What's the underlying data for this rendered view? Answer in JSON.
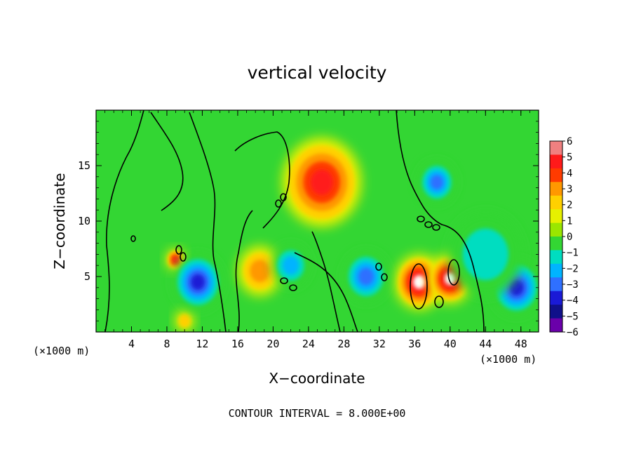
{
  "chart_data": {
    "type": "heatmap",
    "title": "vertical velocity",
    "xlabel": "X−coordinate",
    "ylabel": "Z−coordinate",
    "x_unit_left": "(×1000 m)",
    "x_unit_right": "(×1000 m)",
    "footer": "CONTOUR INTERVAL = 8.000E+00",
    "xlim": [
      0,
      50
    ],
    "ylim": [
      0,
      20
    ],
    "x_ticks": [
      4,
      8,
      12,
      16,
      20,
      24,
      28,
      32,
      36,
      40,
      44,
      48
    ],
    "y_ticks": [
      5,
      10,
      15
    ],
    "colorbar": {
      "levels": [
        6,
        5,
        4,
        3,
        2,
        1,
        0,
        -1,
        -2,
        -3,
        -4,
        -5,
        -6
      ],
      "labels": [
        "6",
        "5",
        "4",
        "3",
        "2",
        "1",
        "0",
        "−1",
        "−2",
        "−3",
        "−4",
        "−5",
        "−6"
      ],
      "colors": [
        "#f08080",
        "#ff1a1a",
        "#ff3b00",
        "#ff9800",
        "#ffd000",
        "#e6f000",
        "#9ae600",
        "#33d633",
        "#00ddc0",
        "#00b4ff",
        "#2f70ff",
        "#1a1ad6",
        "#10108a",
        "#6a00aa"
      ]
    },
    "background_color": "#33d633",
    "features": [
      {
        "x": 25.5,
        "z": 13.5,
        "w": 3.2,
        "value": 5
      },
      {
        "x": 9.0,
        "z": 6.5,
        "w": 0.8,
        "value": 5
      },
      {
        "x": 18.5,
        "z": 5.5,
        "w": 1.8,
        "value": 3
      },
      {
        "x": 36.5,
        "z": 4.5,
        "w": 2.0,
        "value": 6
      },
      {
        "x": 40.0,
        "z": 4.8,
        "w": 1.8,
        "value": 6
      },
      {
        "x": 10.0,
        "z": 1.0,
        "w": 0.8,
        "value": 2
      },
      {
        "x": 11.5,
        "z": 4.5,
        "w": 2.0,
        "value": -5
      },
      {
        "x": 38.5,
        "z": 13.5,
        "w": 1.5,
        "value": -4
      },
      {
        "x": 47.5,
        "z": 4.0,
        "w": 2.0,
        "value": -5
      },
      {
        "x": 30.5,
        "z": 5.0,
        "w": 1.8,
        "value": -4
      },
      {
        "x": 22.0,
        "z": 6.0,
        "w": 1.5,
        "value": -3
      },
      {
        "x": 44.0,
        "z": 7.0,
        "w": 3.0,
        "value": -2
      }
    ]
  }
}
